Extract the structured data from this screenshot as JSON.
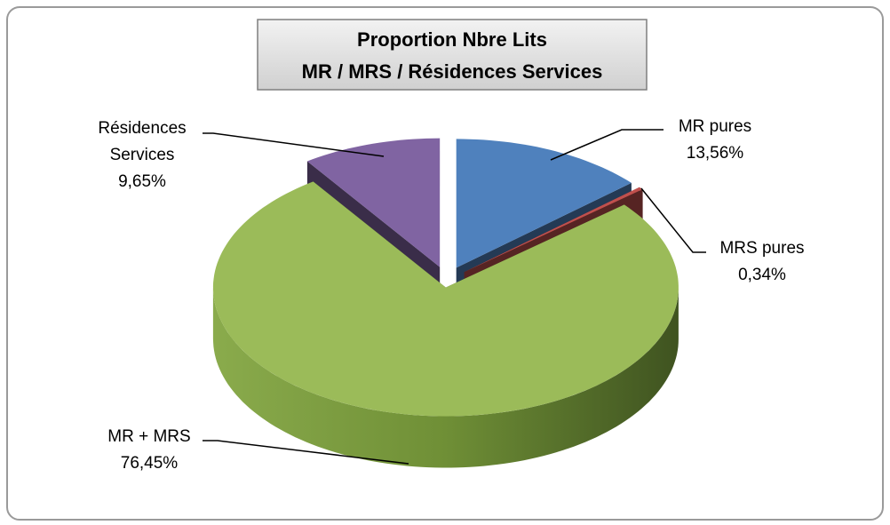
{
  "chart_data": {
    "type": "pie3d",
    "title": "Proportion Nbre Lits\nMR / MRS / Résidences Services",
    "categories": [
      "MR pures",
      "MRS pures",
      "MR + MRS",
      "Résidences Services"
    ],
    "values": [
      13.56,
      0.34,
      76.45,
      9.65
    ],
    "value_labels": [
      "13,56%",
      "0,34%",
      "76,45%",
      "9,65%"
    ],
    "colors": [
      "#4f81bd",
      "#c0504d",
      "#9bbb59",
      "#8064a2"
    ]
  }
}
